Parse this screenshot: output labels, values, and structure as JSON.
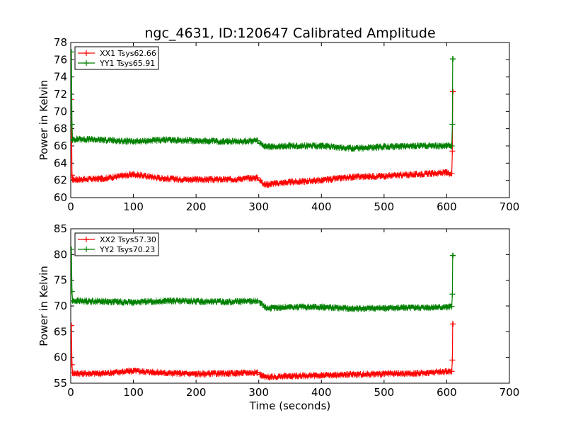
{
  "figure": {
    "title": "ngc_4631, ID:120647 Calibrated Amplitude"
  },
  "chart_data": [
    {
      "type": "line",
      "title": "ngc_4631, ID:120647 Calibrated Amplitude",
      "xlabel": "",
      "ylabel": "Power in Kelvin",
      "xlim": [
        0,
        700
      ],
      "ylim": [
        60,
        78
      ],
      "xticks": [
        0,
        100,
        200,
        300,
        400,
        500,
        600,
        700
      ],
      "yticks": [
        60,
        62,
        64,
        66,
        68,
        70,
        72,
        74,
        76,
        78
      ],
      "legend_position": "top-left",
      "series": [
        {
          "name": "XX1 Tsys62.66",
          "color": "#ff0000",
          "x": [
            0,
            1,
            2,
            3,
            10,
            50,
            100,
            150,
            200,
            250,
            298,
            302,
            310,
            320,
            350,
            400,
            450,
            500,
            550,
            600,
            608,
            609,
            609.5,
            610
          ],
          "y": [
            62.3,
            71.4,
            62.6,
            62.1,
            62.1,
            62.2,
            62.7,
            62.2,
            62.1,
            62.1,
            62.3,
            62.0,
            61.5,
            61.6,
            61.8,
            62.0,
            62.4,
            62.5,
            62.7,
            62.9,
            62.8,
            65.4,
            72.3,
            72.3
          ]
        },
        {
          "name": "YY1 Tsys65.91",
          "color": "#008000",
          "x": [
            0,
            1,
            2,
            3,
            10,
            50,
            100,
            150,
            200,
            250,
            298,
            302,
            310,
            320,
            350,
            400,
            450,
            500,
            550,
            600,
            608,
            609,
            609.5,
            610
          ],
          "y": [
            66.6,
            76.9,
            68.5,
            66.7,
            66.8,
            66.7,
            66.5,
            66.7,
            66.6,
            66.5,
            66.6,
            66.3,
            65.9,
            65.9,
            66.0,
            66.0,
            65.7,
            65.9,
            66.0,
            66.0,
            66.0,
            68.5,
            76.1,
            76.1
          ]
        }
      ]
    },
    {
      "type": "line",
      "title": "",
      "xlabel": "Time (seconds)",
      "ylabel": "Power in Kelvin",
      "xlim": [
        0,
        700
      ],
      "ylim": [
        55,
        85
      ],
      "xticks": [
        0,
        100,
        200,
        300,
        400,
        500,
        600,
        700
      ],
      "yticks": [
        55,
        60,
        65,
        70,
        75,
        80,
        85
      ],
      "legend_position": "top-left",
      "series": [
        {
          "name": "XX2 Tsys57.30",
          "color": "#ff0000",
          "x": [
            0,
            1,
            2,
            3,
            10,
            50,
            100,
            150,
            200,
            250,
            298,
            302,
            310,
            320,
            350,
            400,
            450,
            500,
            550,
            600,
            608,
            609,
            609.5,
            610
          ],
          "y": [
            57.0,
            66.2,
            58.6,
            57.0,
            56.9,
            56.9,
            57.4,
            57.0,
            56.8,
            56.9,
            57.1,
            56.7,
            56.2,
            56.2,
            56.4,
            56.5,
            56.7,
            56.8,
            56.9,
            57.3,
            57.3,
            59.5,
            66.5,
            66.5
          ]
        },
        {
          "name": "YY2 Tsys70.23",
          "color": "#008000",
          "x": [
            0,
            1,
            2,
            3,
            10,
            50,
            100,
            150,
            200,
            250,
            298,
            302,
            310,
            320,
            350,
            400,
            450,
            500,
            550,
            600,
            608,
            609,
            609.5,
            610
          ],
          "y": [
            70.8,
            81.0,
            72.8,
            71.0,
            71.0,
            70.9,
            70.7,
            71.0,
            70.9,
            70.8,
            71.0,
            70.6,
            69.7,
            69.6,
            69.8,
            69.8,
            69.5,
            69.6,
            69.7,
            69.8,
            69.9,
            72.3,
            79.8,
            79.8
          ]
        }
      ]
    }
  ]
}
